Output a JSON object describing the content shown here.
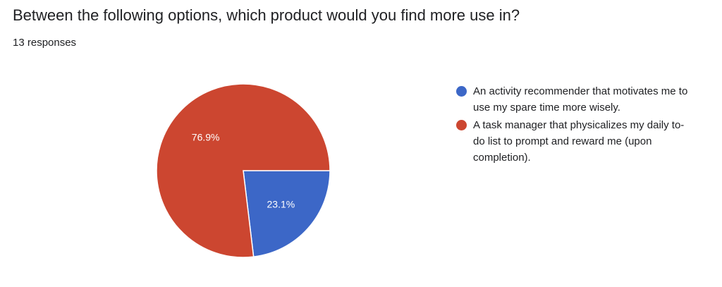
{
  "header": {
    "question": "Between the following options, which product would you find more use in?",
    "responses": "13 responses"
  },
  "chart_data": {
    "type": "pie",
    "categories": [
      "An activity recommender that motivates me to use my spare time more wisely.",
      "A task manager that physicalizes my daily to-do list to prompt and reward me (upon completion)."
    ],
    "values": [
      23.1,
      76.9
    ],
    "labels": [
      "23.1%",
      "76.9%"
    ],
    "colors": [
      "#3c67c7",
      "#cc4630"
    ],
    "legend_position": "right"
  },
  "legend": [
    {
      "label": "An activity recommender that motivates me to use my spare time more wisely.",
      "color": "#3c67c7"
    },
    {
      "label": "A task manager that physicalizes my daily to-do list to prompt and reward me (upon completion).",
      "color": "#cc4630"
    }
  ]
}
